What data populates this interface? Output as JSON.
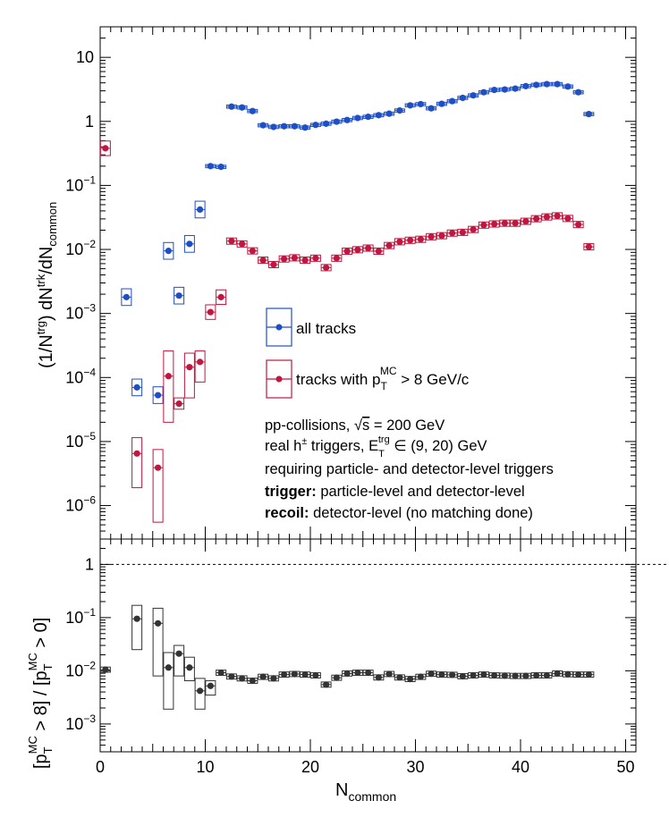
{
  "chart_data": [
    {
      "type": "scatter",
      "panel": "top",
      "title": "",
      "xlabel": "N",
      "xlabel_sub": "common",
      "ylabel": "(1/N^trg) dN^trk/dN_common",
      "ylabel_parts": [
        "(1/N",
        "trg",
        ") dN",
        "trk",
        "/dN",
        "common"
      ],
      "xlim": [
        0,
        50
      ],
      "ylim": [
        3e-07,
        30
      ],
      "y_scale": "log",
      "grid": false,
      "y_ticks": [
        {
          "value": 10,
          "mantissa": "10",
          "exp": ""
        },
        {
          "value": 1,
          "mantissa": "1",
          "exp": ""
        },
        {
          "value": 0.1,
          "mantissa": "10",
          "exp": "−1"
        },
        {
          "value": 0.01,
          "mantissa": "10",
          "exp": "−2"
        },
        {
          "value": 0.001,
          "mantissa": "10",
          "exp": "−3"
        },
        {
          "value": 0.0001,
          "mantissa": "10",
          "exp": "−4"
        },
        {
          "value": 1e-05,
          "mantissa": "10",
          "exp": "−5"
        },
        {
          "value": 1e-06,
          "mantissa": "10",
          "exp": "−6"
        }
      ],
      "series": [
        {
          "name": "all tracks",
          "color": "#1f4fc4",
          "x": [
            2.5,
            3.5,
            5.5,
            6.5,
            7.5,
            8.5,
            9.5,
            10.5,
            11.5,
            12.5,
            13.5,
            14.5,
            15.5,
            16.5,
            17.5,
            18.5,
            19.5,
            20.5,
            21.5,
            22.5,
            23.5,
            24.5,
            25.5,
            26.5,
            27.5,
            28.5,
            29.5,
            30.5,
            31.5,
            32.5,
            33.5,
            34.5,
            35.5,
            36.5,
            37.5,
            38.5,
            39.5,
            40.5,
            41.5,
            42.5,
            43.5,
            44.5,
            45.5,
            46.5
          ],
          "y": [
            0.0018,
            7e-05,
            5.3e-05,
            0.0095,
            0.0019,
            0.0122,
            0.042,
            0.2,
            0.195,
            1.7,
            1.65,
            1.45,
            0.87,
            0.82,
            0.84,
            0.84,
            0.8,
            0.88,
            0.92,
            0.99,
            1.05,
            1.13,
            1.18,
            1.25,
            1.32,
            1.48,
            1.78,
            1.86,
            1.6,
            1.88,
            2.07,
            2.33,
            2.55,
            2.85,
            3.1,
            3.15,
            3.25,
            3.55,
            3.72,
            3.82,
            3.82,
            3.5,
            2.85,
            1.3
          ]
        },
        {
          "name": "tracks with p_T^MC > 8 GeV/c",
          "color": "#c0163f",
          "x": [
            0.5,
            3.5,
            5.5,
            6.5,
            7.5,
            8.5,
            9.5,
            10.5,
            11.5,
            12.5,
            13.5,
            14.5,
            15.5,
            16.5,
            17.5,
            18.5,
            19.5,
            20.5,
            21.5,
            22.5,
            23.5,
            24.5,
            25.5,
            26.5,
            27.5,
            28.5,
            29.5,
            30.5,
            31.5,
            32.5,
            33.5,
            34.5,
            35.5,
            36.5,
            37.5,
            38.5,
            39.5,
            40.5,
            41.5,
            42.5,
            43.5,
            44.5,
            45.5,
            46.5
          ],
          "y": [
            0.38,
            6.5e-06,
            3.9e-06,
            0.000105,
            3.9e-05,
            0.000145,
            0.000175,
            0.00105,
            0.0018,
            0.0135,
            0.0122,
            0.0095,
            0.0068,
            0.0058,
            0.0071,
            0.0074,
            0.0068,
            0.0073,
            0.0052,
            0.0073,
            0.0094,
            0.0099,
            0.0105,
            0.0094,
            0.0115,
            0.0132,
            0.0139,
            0.0144,
            0.0158,
            0.0164,
            0.018,
            0.0185,
            0.0205,
            0.024,
            0.025,
            0.0257,
            0.0257,
            0.0275,
            0.0302,
            0.0322,
            0.0335,
            0.0305,
            0.0245,
            0.011
          ]
        }
      ],
      "legend": [
        {
          "label": "all tracks",
          "series": 0
        },
        {
          "label_parts": [
            "tracks with p",
            "T",
            "MC",
            " > 8 GeV/c"
          ],
          "series": 1
        }
      ],
      "legend_placement": "center",
      "annotations": {
        "line1_parts": [
          "pp-collisions, ",
          "s",
          " = 200 GeV"
        ],
        "line2_parts": [
          "real h",
          "±",
          " triggers, E",
          "T",
          "trg",
          " ∈ (9, 20) GeV"
        ],
        "line3": "requiring particle- and detector-level triggers",
        "line4_bold": "trigger:",
        "line4_rest": " particle-level and detector-level",
        "line5_bold": "recoil:",
        "line5_rest": " detector-level (no matching done)"
      }
    },
    {
      "type": "scatter",
      "panel": "bottom",
      "title": "",
      "xlabel": "N_common",
      "ylabel_parts": [
        "[p",
        "T",
        "MC",
        " > 8] / [p",
        "T",
        "MC",
        " > 0]"
      ],
      "xlim": [
        0,
        50
      ],
      "ylim": [
        0.0003,
        3
      ],
      "y_scale": "log",
      "grid": false,
      "reference_line": 1,
      "reference_style": "dashed",
      "x_ticks": [
        "0",
        "10",
        "20",
        "30",
        "40",
        "50"
      ],
      "y_ticks": [
        {
          "value": 1,
          "mantissa": "1",
          "exp": ""
        },
        {
          "value": 0.1,
          "mantissa": "10",
          "exp": "−1"
        },
        {
          "value": 0.01,
          "mantissa": "10",
          "exp": "−2"
        },
        {
          "value": 0.001,
          "mantissa": "10",
          "exp": "−3"
        }
      ],
      "series": [
        {
          "name": "",
          "color": "#333333",
          "x": [
            0.5,
            3.5,
            5.5,
            6.5,
            7.5,
            8.5,
            9.5,
            10.5,
            11.5,
            12.5,
            13.5,
            14.5,
            15.5,
            16.5,
            17.5,
            18.5,
            19.5,
            20.5,
            21.5,
            22.5,
            23.5,
            24.5,
            25.5,
            26.5,
            27.5,
            28.5,
            29.5,
            30.5,
            31.5,
            32.5,
            33.5,
            34.5,
            35.5,
            36.5,
            37.5,
            38.5,
            39.5,
            40.5,
            41.5,
            42.5,
            43.5,
            44.5,
            45.5,
            46.5
          ],
          "y": [
            0.0105,
            0.095,
            0.078,
            0.0115,
            0.021,
            0.0115,
            0.0042,
            0.0052,
            0.0092,
            0.0078,
            0.0072,
            0.0065,
            0.0077,
            0.0072,
            0.0085,
            0.0087,
            0.0085,
            0.0082,
            0.0055,
            0.0074,
            0.0089,
            0.0092,
            0.0092,
            0.0075,
            0.0087,
            0.0075,
            0.007,
            0.0077,
            0.0088,
            0.0085,
            0.0084,
            0.0079,
            0.0082,
            0.0085,
            0.0082,
            0.0081,
            0.008,
            0.008,
            0.0082,
            0.0082,
            0.0089,
            0.0086,
            0.0085,
            0.0085
          ]
        }
      ]
    }
  ]
}
